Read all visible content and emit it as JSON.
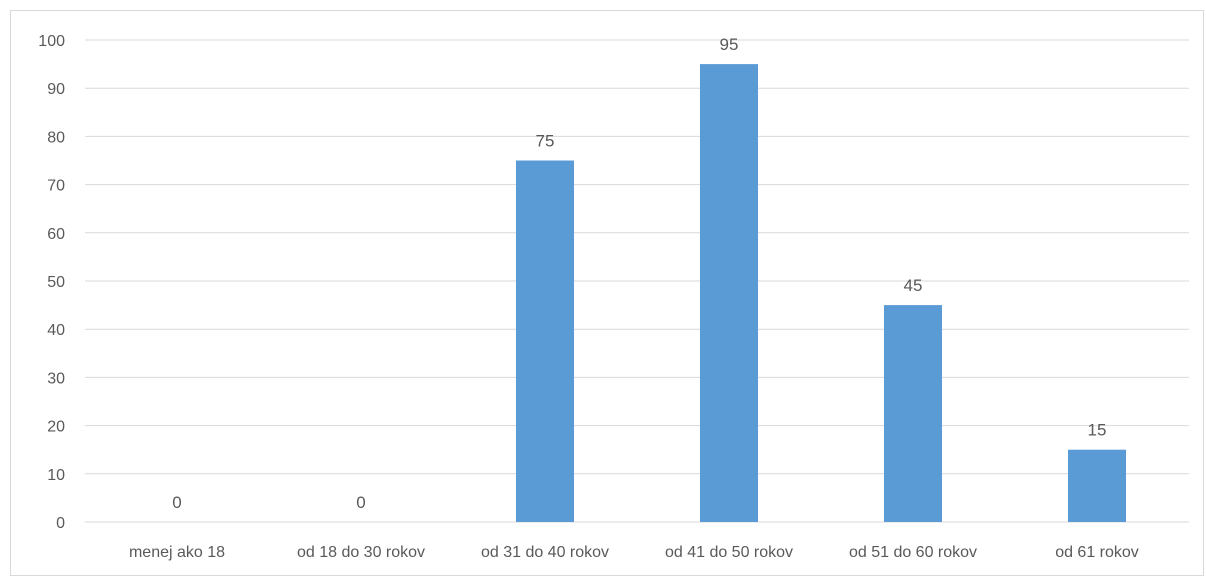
{
  "chart_data": {
    "type": "bar",
    "title": "",
    "xlabel": "",
    "ylabel": "",
    "categories": [
      "menej ako 18",
      "od 18 do 30 rokov",
      "od 31 do 40 rokov",
      "od 41 do 50 rokov",
      "od 51 do 60 rokov",
      "od 61 rokov"
    ],
    "values": [
      0,
      0,
      75,
      95,
      45,
      15
    ],
    "ylim": [
      0,
      100
    ],
    "yticks": [
      "0",
      "10",
      "20",
      "30",
      "40",
      "50",
      "60",
      "70",
      "80",
      "90",
      "100"
    ],
    "grid": true,
    "legend": "none",
    "bar_color": "#5b9bd5",
    "data_labels": true
  }
}
